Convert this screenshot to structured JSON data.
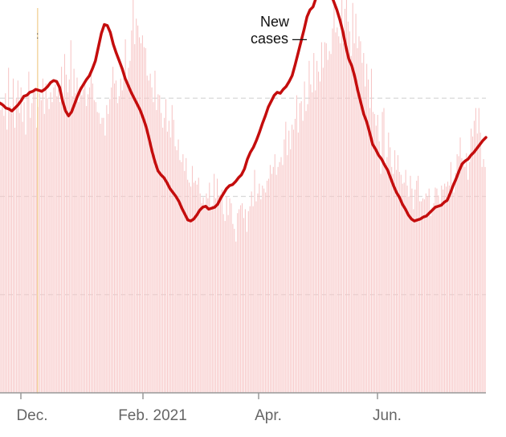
{
  "chart_data": {
    "type": "bar",
    "title": "",
    "xlabel": "",
    "ylabel": "",
    "x_ticks": [
      "Dec.",
      "Feb. 2021",
      "Apr.",
      "Jun."
    ],
    "ylim": [
      0,
      400
    ],
    "y_gridlines": [
      100,
      200,
      300
    ],
    "grid": true,
    "legend": "none",
    "annotation": "New\ncases —",
    "colors": {
      "bars": "#f7c6c6",
      "line": "#c40d0d",
      "grid": "#d9d9d9",
      "axis": "#999999",
      "marker": "#f4d9a8"
    },
    "series": [
      {
        "kind": "bars",
        "values": [
          288,
          296,
          282,
          305,
          268,
          331,
          292,
          285,
          320,
          270,
          300,
          318,
          285,
          311,
          276,
          296,
          263,
          301,
          327,
          280,
          295,
          308,
          310,
          270,
          291,
          305,
          298,
          320,
          284,
          315,
          300,
          289,
          306,
          296,
          311,
          314,
          302,
          313,
          296,
          332,
          298,
          345,
          324,
          306,
          319,
          359,
          302,
          330,
          305,
          321,
          296,
          312,
          303,
          309,
          316,
          292,
          304,
          311,
          327,
          315,
          298,
          296,
          286,
          285,
          274,
          280,
          280,
          262,
          293,
          284,
          299,
          311,
          332,
          315,
          318,
          295,
          302,
          320,
          308,
          322,
          360,
          316,
          331,
          338,
          369,
          412,
          355,
          381,
          374,
          362,
          356,
          364,
          352,
          351,
          323,
          318,
          325,
          311,
          296,
          328,
          288,
          304,
          303,
          285,
          270,
          280,
          299,
          266,
          277,
          260,
          293,
          278,
          251,
          247,
          258,
          237,
          235,
          243,
          226,
          239,
          217,
          214,
          210,
          231,
          214,
          216,
          212,
          219,
          203,
          193,
          199,
          190,
          203,
          198,
          214,
          186,
          191,
          223,
          198,
          218,
          201,
          202,
          207,
          182,
          175,
          200,
          181,
          198,
          193,
          172,
          167,
          154,
          183,
          187,
          191,
          193,
          178,
          187,
          164,
          185,
          190,
          205,
          190,
          227,
          195,
          203,
          213,
          197,
          211,
          208,
          204,
          216,
          218,
          232,
          223,
          230,
          243,
          222,
          230,
          235,
          240,
          232,
          258,
          276,
          242,
          267,
          248,
          273,
          268,
          279,
          303,
          265,
          295,
          297,
          277,
          317,
          287,
          294,
          338,
          314,
          306,
          346,
          308,
          338,
          327,
          317,
          357,
          331,
          357,
          356,
          339,
          348,
          345,
          371,
          404,
          367,
          372,
          363,
          356,
          414,
          356,
          391,
          402,
          378,
          368,
          343,
          397,
          356,
          386,
          351,
          363,
          358,
          336,
          346,
          312,
          335,
          319,
          290,
          330,
          286,
          284,
          272,
          283,
          256,
          223,
          286,
          290,
          234,
          240,
          265,
          250,
          230,
          223,
          247,
          227,
          242,
          225,
          222,
          213,
          214,
          227,
          211,
          200,
          221,
          208,
          187,
          207,
          216,
          221,
          195,
          195,
          198,
          197,
          203,
          200,
          208,
          180,
          189,
          193,
          209,
          208,
          201,
          193,
          211,
          207,
          213,
          210,
          215,
          211,
          235,
          214,
          204,
          224,
          243,
          241,
          260,
          239,
          233,
          230,
          244,
          217,
          235,
          269,
          261,
          277,
          290,
          264,
          290,
          265,
          230,
          238,
          230
        ],
        "color": "#f7c6c6"
      },
      {
        "kind": "line",
        "name": "",
        "values": [
          295,
          293,
          290,
          289,
          287,
          290,
          293,
          297,
          302,
          303,
          306,
          307,
          309,
          308,
          307,
          309,
          312,
          316,
          318,
          317,
          311,
          297,
          287,
          282,
          286,
          294,
          302,
          309,
          314,
          319,
          323,
          330,
          338,
          352,
          366,
          375,
          374,
          367,
          355,
          346,
          338,
          330,
          320,
          313,
          306,
          300,
          294,
          288,
          280,
          271,
          259,
          246,
          235,
          226,
          222,
          219,
          214,
          208,
          204,
          200,
          195,
          188,
          182,
          176,
          175,
          177,
          181,
          186,
          189,
          190,
          187,
          188,
          189,
          192,
          198,
          203,
          208,
          211,
          212,
          215,
          219,
          222,
          228,
          238,
          245,
          250,
          257,
          265,
          274,
          282,
          291,
          297,
          303,
          306,
          305,
          309,
          312,
          317,
          323,
          334,
          346,
          358,
          370,
          383,
          390,
          393,
          402,
          408,
          412,
          413,
          410,
          406,
          398,
          390,
          380,
          368,
          353,
          340,
          333,
          322,
          308,
          296,
          284,
          276,
          265,
          253,
          248,
          242,
          238,
          232,
          227,
          219,
          211,
          204,
          199,
          192,
          187,
          181,
          177,
          175,
          176,
          177,
          179,
          180,
          183,
          186,
          189,
          190,
          191,
          194,
          196,
          203,
          211,
          218,
          226,
          233,
          236,
          238,
          242,
          245,
          249,
          253,
          257,
          260
        ],
        "color": "#c40d0d"
      }
    ]
  }
}
